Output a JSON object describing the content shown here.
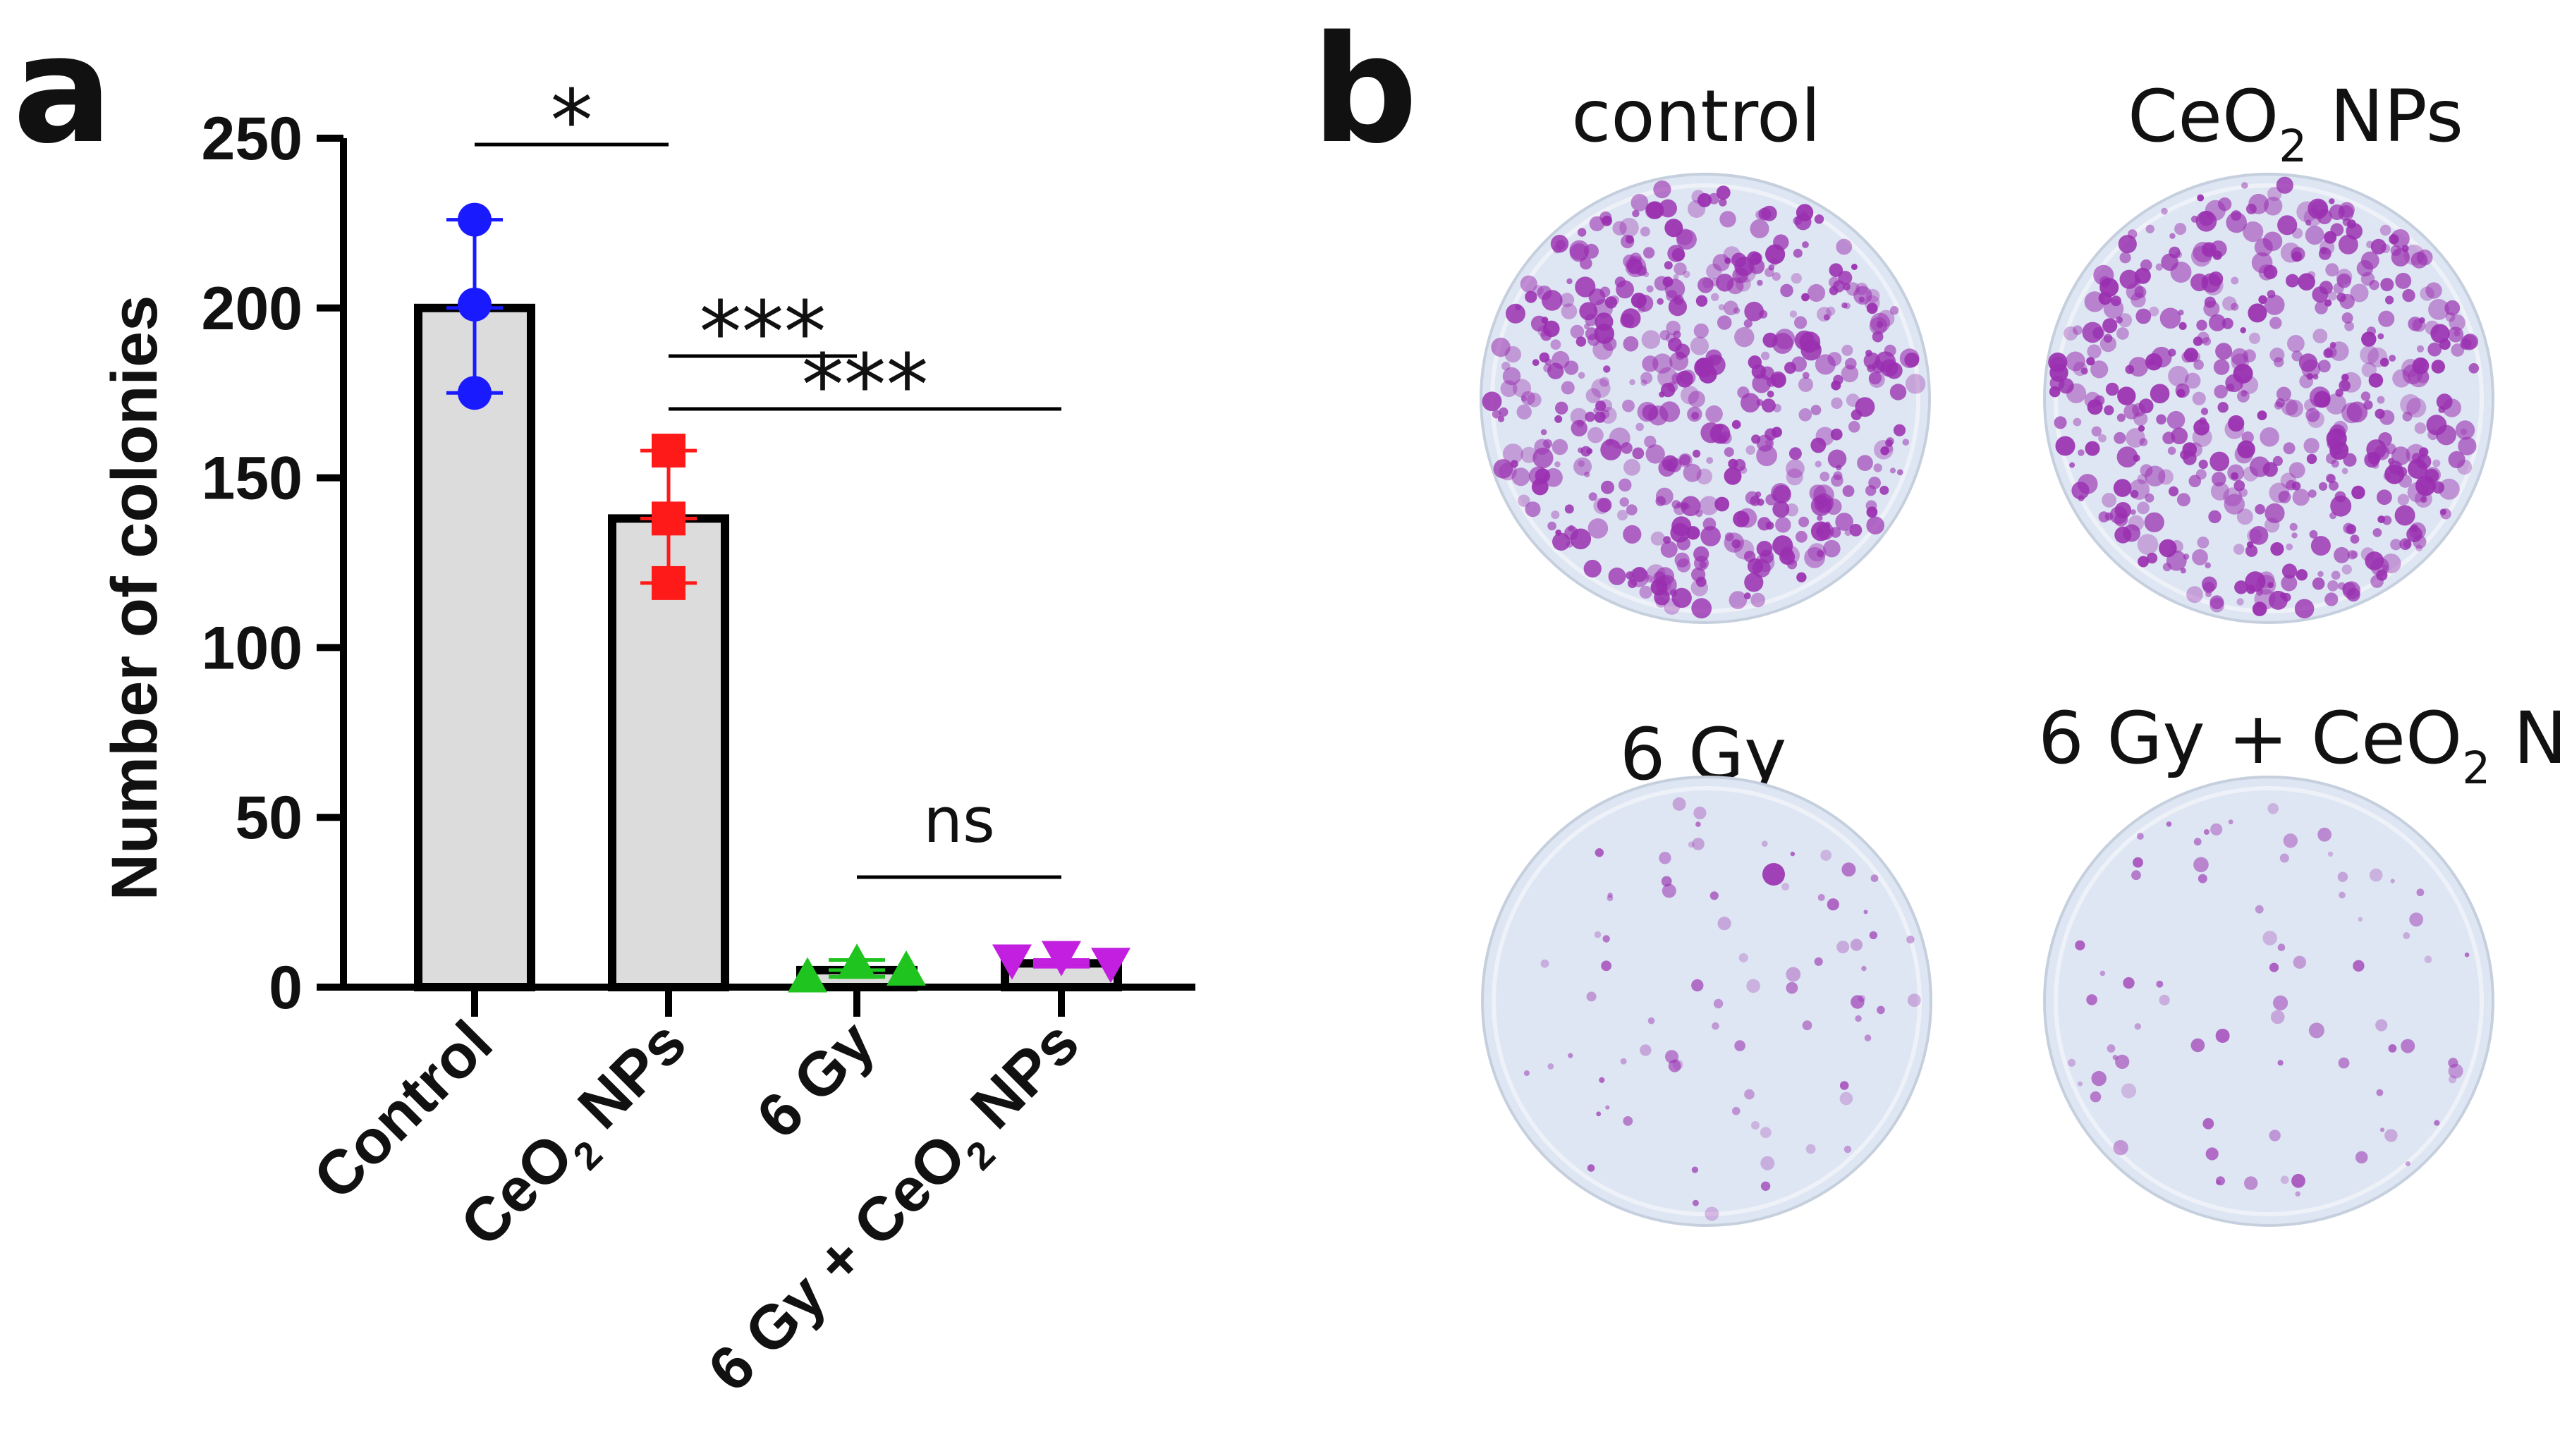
{
  "panel_labels": [
    "a",
    "b"
  ],
  "chart_data": {
    "type": "bar",
    "categories": [
      "Control",
      "CeO2 NPs",
      "6 Gy",
      "6 Gy + CeO2 NPs"
    ],
    "category_labels": [
      {
        "before": "Control",
        "sub": "",
        "after": ""
      },
      {
        "before": "CeO",
        "sub": "2",
        "after": " NPs"
      },
      {
        "before": "6 Gy",
        "sub": "",
        "after": ""
      },
      {
        "before": "6 Gy + CeO",
        "sub": "2",
        "after": " NPs"
      }
    ],
    "values": [
      200,
      138,
      5,
      7
    ],
    "error_low": [
      175,
      119,
      3,
      6
    ],
    "error_high": [
      226,
      158,
      8,
      8
    ],
    "points": [
      [
        226,
        201,
        175
      ],
      [
        158,
        138,
        119
      ],
      [
        3,
        7,
        5
      ],
      [
        8,
        9,
        7
      ]
    ],
    "marker_shapes": [
      "circle",
      "square",
      "triangle-up",
      "triangle-down"
    ],
    "marker_colors": [
      "#1a1aff",
      "#ff1a1a",
      "#1fc41f",
      "#c21fe0"
    ],
    "bar_fill": "#dcdcdc",
    "ylabel": "Number of colonies",
    "ylim": [
      0,
      250
    ],
    "yticks": [
      0,
      50,
      100,
      150,
      200,
      250
    ],
    "significance": [
      {
        "from": 0,
        "to": 1,
        "label": "*"
      },
      {
        "from": 1,
        "to": 2,
        "label": "***"
      },
      {
        "from": 1,
        "to": 3,
        "label": "***"
      },
      {
        "from": 2,
        "to": 3,
        "label": "ns"
      }
    ]
  },
  "plates": [
    {
      "label": {
        "before": "control",
        "sub": "",
        "after": ""
      },
      "density": "high"
    },
    {
      "label": {
        "before": "CeO",
        "sub": "2",
        "after": " NPs"
      },
      "density": "high"
    },
    {
      "label": {
        "before": "6 Gy",
        "sub": "",
        "after": ""
      },
      "density": "low"
    },
    {
      "label": {
        "before": "6 Gy + CeO",
        "sub": "2",
        "after": " NPs"
      },
      "density": "low"
    }
  ],
  "colors": {
    "plate_background": "#dde6f2",
    "colony_stain": "#9a2fb0"
  }
}
